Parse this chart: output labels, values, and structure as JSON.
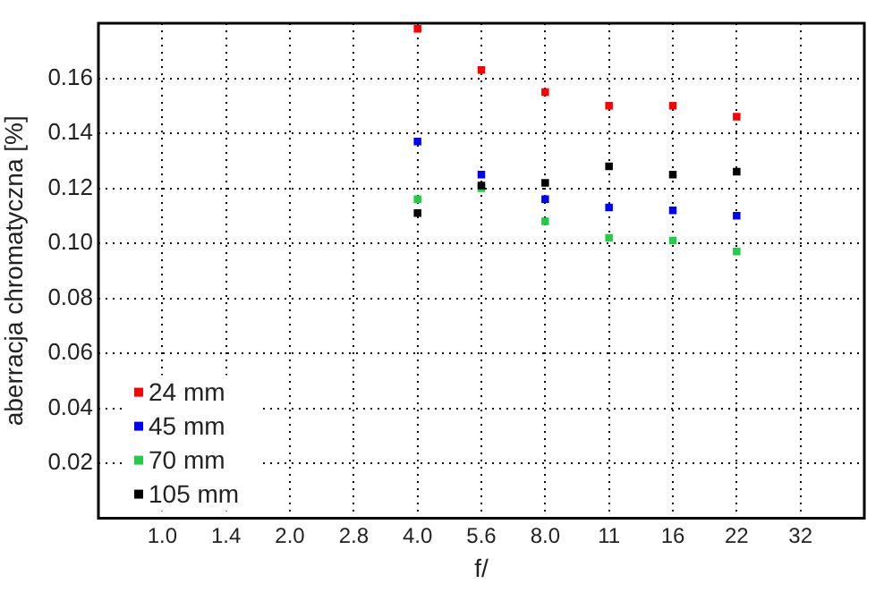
{
  "chart_data": {
    "type": "scatter",
    "xlabel": "f/",
    "ylabel": "aberracja chromatyczna [%]",
    "categories": [
      "1.0",
      "1.4",
      "2.0",
      "2.8",
      "4.0",
      "5.6",
      "8.0",
      "11",
      "16",
      "22",
      "32"
    ],
    "series": [
      {
        "name": "24 mm",
        "color": "#ff0000",
        "values": [
          null,
          null,
          null,
          null,
          0.178,
          0.163,
          0.155,
          0.15,
          0.15,
          0.146,
          null
        ]
      },
      {
        "name": "45 mm",
        "color": "#0000ff",
        "values": [
          null,
          null,
          null,
          null,
          0.137,
          0.125,
          0.116,
          0.113,
          0.112,
          0.11,
          null
        ]
      },
      {
        "name": "70 mm",
        "color": "#22cc44",
        "values": [
          null,
          null,
          null,
          null,
          0.116,
          0.12,
          0.108,
          0.102,
          0.101,
          0.097,
          null
        ]
      },
      {
        "name": "105 mm",
        "color": "#000000",
        "values": [
          null,
          null,
          null,
          null,
          0.111,
          0.121,
          0.122,
          0.128,
          0.125,
          0.126,
          null
        ]
      }
    ],
    "ylim": [
      0,
      0.18
    ],
    "yticks": [
      0.02,
      0.04,
      0.06,
      0.08,
      {
        "value": 0.1,
        "label": "0.10"
      },
      0.12,
      0.14,
      0.16
    ],
    "grid": true,
    "legend": "bottom left",
    "marker": "square"
  }
}
